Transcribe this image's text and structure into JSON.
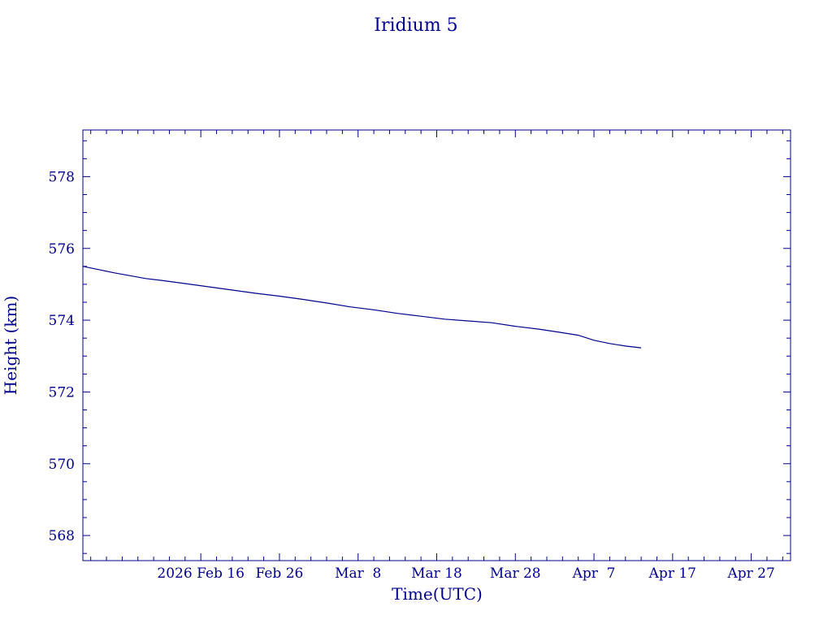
{
  "chart_data": {
    "type": "line",
    "title": "Iridium 5",
    "xlabel": "Time(UTC)",
    "ylabel": "Height (km)",
    "color": "#00008b",
    "xlim": [
      "2026-02-01",
      "2026-05-02"
    ],
    "ylim": [
      567.3,
      579.3
    ],
    "x_tick_labels": [
      "2026 Feb 16",
      "Feb 26",
      "Mar  8",
      "Mar 18",
      "Mar 28",
      "Apr  7",
      "Apr 17",
      "Apr 27"
    ],
    "x_ticks": [
      "2026-02-16",
      "2026-02-26",
      "2026-03-08",
      "2026-03-18",
      "2026-03-28",
      "2026-04-07",
      "2026-04-17",
      "2026-04-27"
    ],
    "y_ticks": [
      568,
      570,
      572,
      574,
      576,
      578
    ],
    "y_tick_labels": [
      "568",
      "570",
      "572",
      "574",
      "576",
      "578"
    ],
    "grid": false,
    "series": [
      {
        "x": [
          "2026-02-01",
          "2026-02-03",
          "2026-02-05",
          "2026-02-07",
          "2026-02-09",
          "2026-02-11",
          "2026-02-14",
          "2026-02-17",
          "2026-02-20",
          "2026-02-23",
          "2026-02-26",
          "2026-03-01",
          "2026-03-04",
          "2026-03-07",
          "2026-03-10",
          "2026-03-13",
          "2026-03-16",
          "2026-03-19",
          "2026-03-22",
          "2026-03-25",
          "2026-03-28",
          "2026-03-31",
          "2026-04-03",
          "2026-04-05",
          "2026-04-07",
          "2026-04-09",
          "2026-04-11",
          "2026-04-13"
        ],
        "y": [
          575.5,
          575.41,
          575.32,
          575.24,
          575.16,
          575.11,
          575.02,
          574.93,
          574.84,
          574.75,
          574.67,
          574.58,
          574.48,
          574.37,
          574.29,
          574.19,
          574.11,
          574.03,
          573.98,
          573.93,
          573.83,
          573.75,
          573.65,
          573.58,
          573.44,
          573.35,
          573.28,
          573.23
        ]
      }
    ]
  }
}
